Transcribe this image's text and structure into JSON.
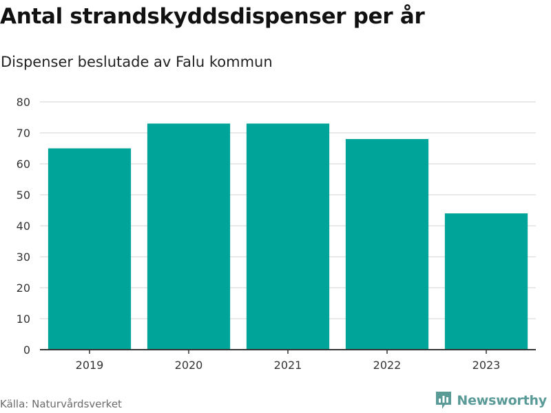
{
  "header": {
    "title": "Antal strandskyddsdispenser per år",
    "subtitle": "Dispenser beslutade av Falu kommun"
  },
  "footer": {
    "source": "Källa: Naturvårdsverket",
    "brand": "Newsworthy",
    "brand_icon": "newsworthy-logo-icon"
  },
  "colors": {
    "bar": "#00a499",
    "grid": "#e2e2e2",
    "axis": "#333333",
    "brand": "#5a9a97"
  },
  "chart_data": {
    "type": "bar",
    "categories": [
      "2019",
      "2020",
      "2021",
      "2022",
      "2023"
    ],
    "values": [
      65,
      73,
      73,
      68,
      44
    ],
    "title": "Antal strandskyddsdispenser per år",
    "subtitle": "Dispenser beslutade av Falu kommun",
    "xlabel": "",
    "ylabel": "",
    "ylim": [
      0,
      80
    ],
    "yticks": [
      0,
      10,
      20,
      30,
      40,
      50,
      60,
      70,
      80
    ],
    "grid": true,
    "legend": "none"
  }
}
